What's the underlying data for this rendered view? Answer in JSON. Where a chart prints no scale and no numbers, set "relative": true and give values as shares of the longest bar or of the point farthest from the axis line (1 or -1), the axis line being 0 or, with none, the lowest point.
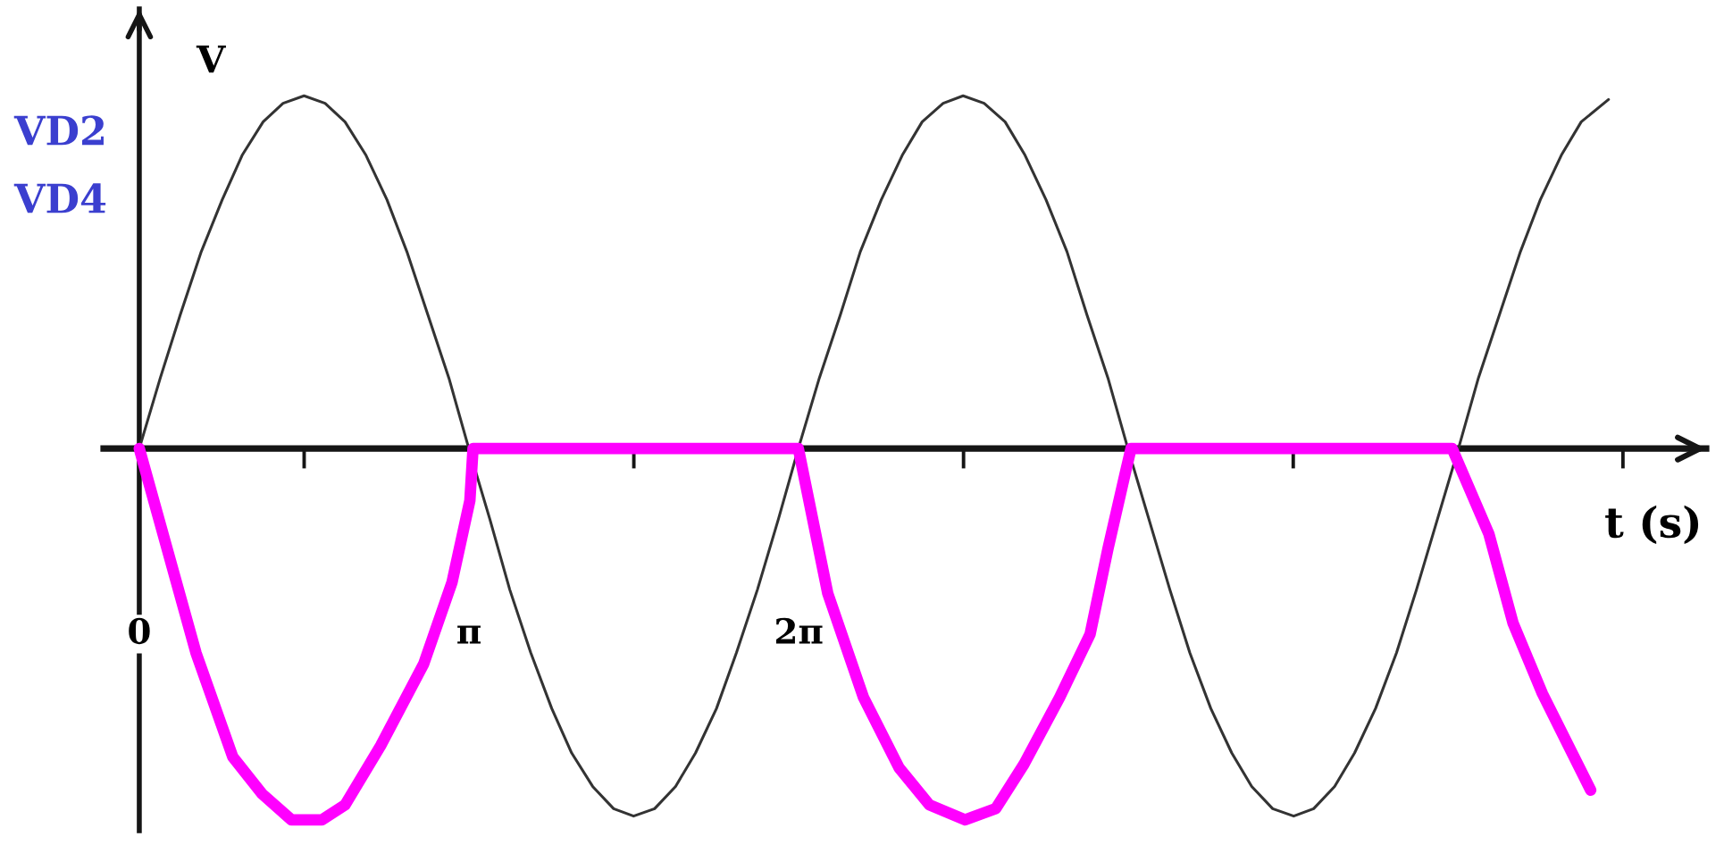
{
  "chart_data": {
    "type": "line",
    "relative": true,
    "xlabel": "t (s)",
    "ylabel": "V",
    "annotations": [
      "VD2",
      "VD4"
    ],
    "xlim": [
      -0.34,
      14.93
    ],
    "xticks": [
      0,
      {
        "value": 1.5708,
        "label": null
      },
      {
        "value": 3.1416,
        "label": "π"
      },
      {
        "value": 4.7124,
        "label": null
      },
      {
        "value": 6.2832,
        "label": "2π"
      },
      {
        "value": 7.854,
        "label": null
      },
      {
        "value": 10.9956,
        "label": null
      },
      {
        "value": 14.1372,
        "label": null
      }
    ],
    "series": [
      {
        "color": "#333333",
        "x": [
          0,
          0.2,
          0.39,
          0.59,
          0.79,
          0.98,
          1.18,
          1.37,
          1.57,
          1.77,
          1.96,
          2.16,
          2.36,
          2.55,
          2.75,
          2.95,
          3.14,
          3.34,
          3.53,
          3.73,
          3.93,
          4.12,
          4.32,
          4.52,
          4.71,
          4.91,
          5.11,
          5.3,
          5.5,
          5.69,
          5.89,
          6.09,
          6.28,
          6.48,
          6.68,
          6.87,
          7.07,
          7.27,
          7.46,
          7.66,
          7.85,
          8.05,
          8.25,
          8.44,
          8.64,
          8.84,
          9.03,
          9.23,
          9.42,
          9.62,
          9.82,
          10.01,
          10.21,
          10.41,
          10.6,
          10.8,
          11.0,
          11.19,
          11.39,
          11.58,
          11.78,
          11.98,
          12.17,
          12.37,
          12.57,
          12.76,
          12.96,
          13.16,
          13.35,
          13.55,
          13.74,
          14.0
        ],
        "values": [
          0,
          0.19,
          0.36,
          0.53,
          0.67,
          0.79,
          0.88,
          0.93,
          0.95,
          0.93,
          0.88,
          0.79,
          0.67,
          0.53,
          0.36,
          0.19,
          0,
          -0.19,
          -0.38,
          -0.55,
          -0.7,
          -0.82,
          -0.91,
          -0.97,
          -0.99,
          -0.97,
          -0.91,
          -0.82,
          -0.7,
          -0.55,
          -0.38,
          -0.19,
          0,
          0.19,
          0.36,
          0.53,
          0.67,
          0.79,
          0.88,
          0.93,
          0.95,
          0.93,
          0.88,
          0.79,
          0.67,
          0.53,
          0.36,
          0.19,
          0,
          -0.19,
          -0.38,
          -0.55,
          -0.7,
          -0.82,
          -0.91,
          -0.97,
          -0.99,
          -0.97,
          -0.91,
          -0.82,
          -0.7,
          -0.55,
          -0.38,
          -0.19,
          0,
          0.19,
          0.36,
          0.53,
          0.67,
          0.79,
          0.88,
          0.94
        ]
      },
      {
        "color": "#ff00ff",
        "x": [
          0,
          0.54,
          0.89,
          1.17,
          1.45,
          1.74,
          1.96,
          2.3,
          2.71,
          2.98,
          3.15,
          3.18,
          6.28,
          6.56,
          6.9,
          7.24,
          7.53,
          7.87,
          8.16,
          8.43,
          8.77,
          9.06,
          9.23,
          9.4,
          9.45,
          12.51,
          12.86,
          13.09,
          13.37,
          13.6,
          13.83
        ],
        "values": [
          0,
          -0.55,
          -0.83,
          -0.93,
          -1.0,
          -1.0,
          -0.96,
          -0.8,
          -0.58,
          -0.36,
          -0.14,
          0,
          0,
          -0.39,
          -0.67,
          -0.86,
          -0.96,
          -1.0,
          -0.97,
          -0.85,
          -0.67,
          -0.5,
          -0.27,
          -0.06,
          0,
          0,
          -0.23,
          -0.47,
          -0.66,
          -0.79,
          -0.92
        ]
      }
    ]
  }
}
